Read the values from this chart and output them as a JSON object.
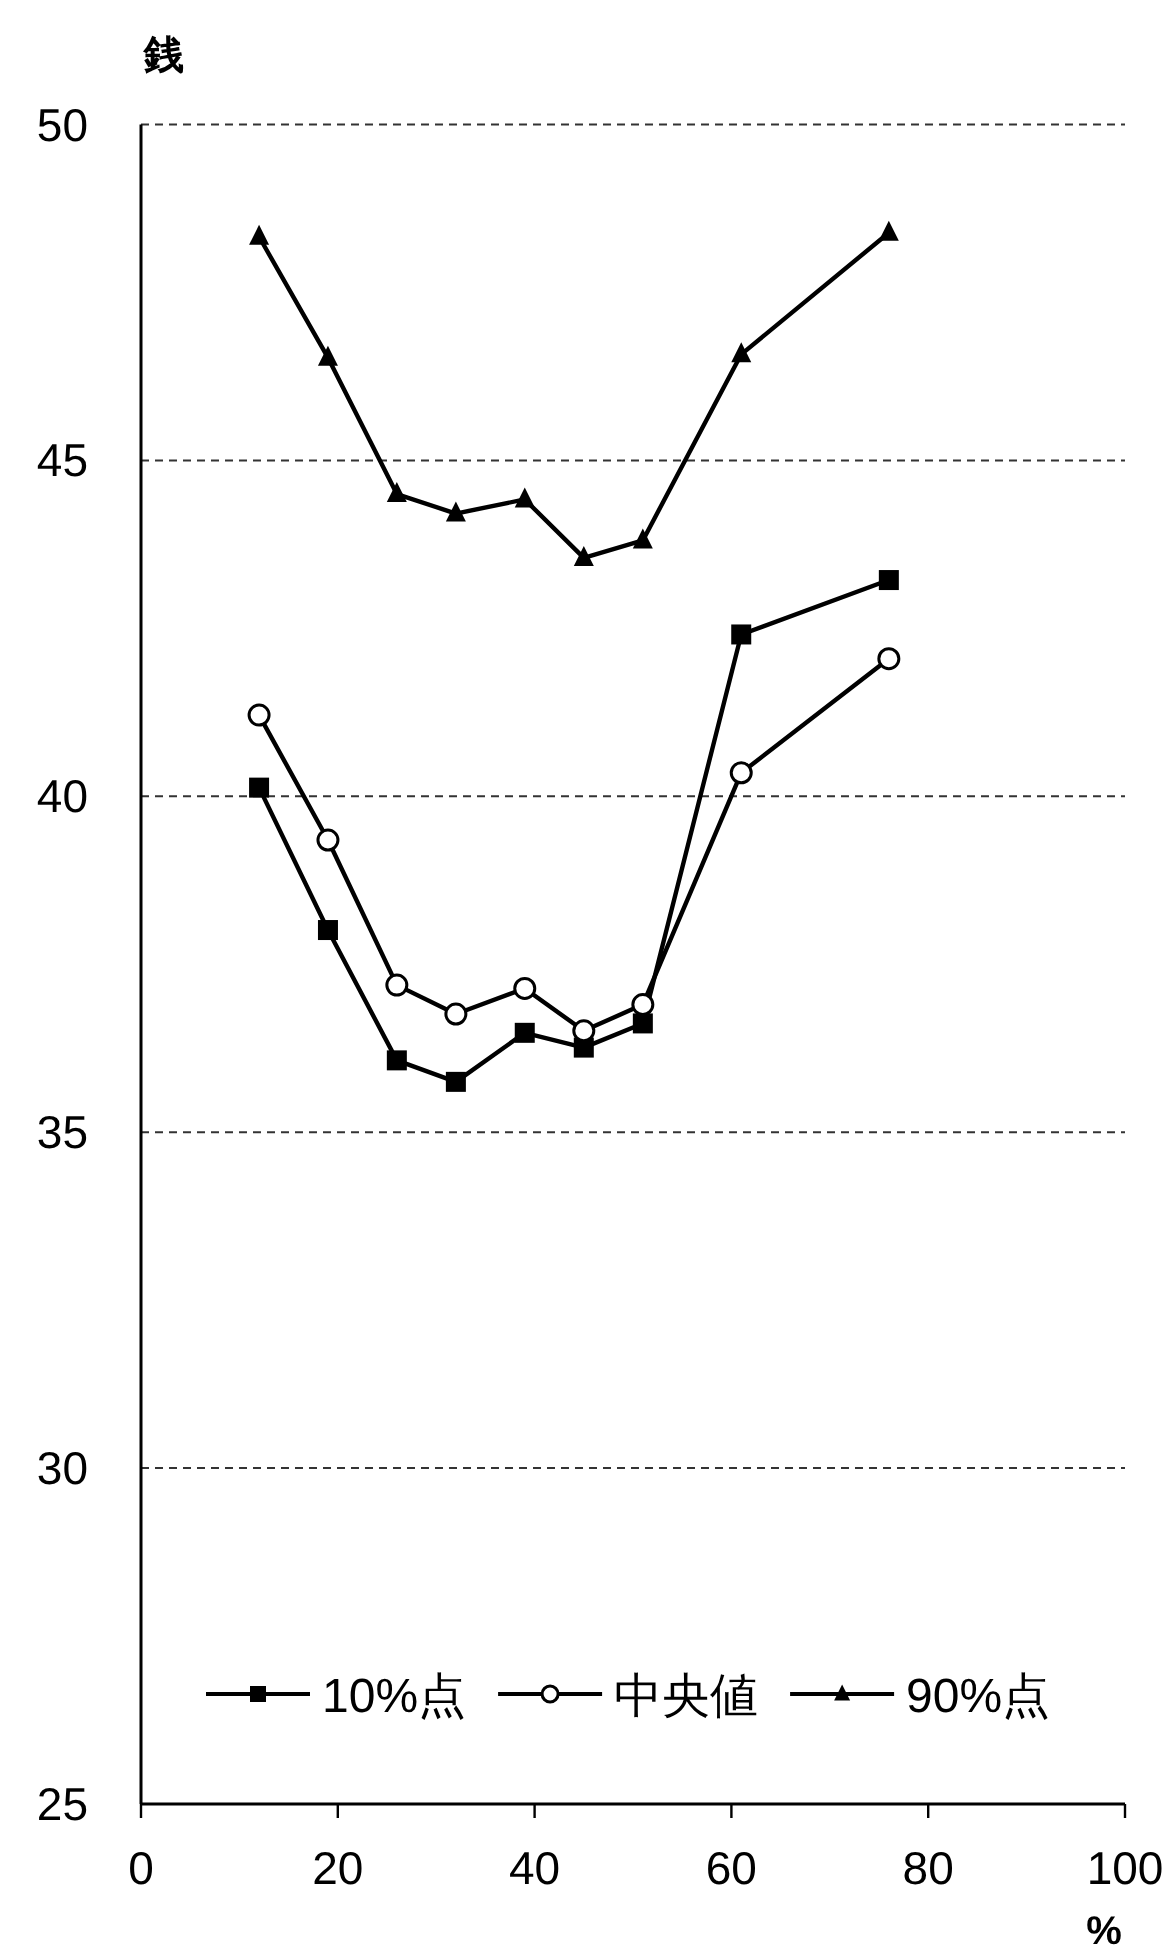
{
  "chart_data": {
    "type": "line",
    "ylabel": "銭",
    "xlabel": "%",
    "x": [
      12,
      19,
      26,
      32,
      39,
      45,
      51,
      61,
      76
    ],
    "xlim": [
      0,
      100
    ],
    "xticks": [
      0,
      20,
      40,
      60,
      80,
      100
    ],
    "ylim": [
      25,
      50
    ],
    "yticks": [
      25,
      30,
      35,
      40,
      45,
      50
    ],
    "grid": "y",
    "legend": "bottom",
    "line_style": "solid",
    "series": [
      {
        "name": "10%点",
        "color": "#000000",
        "marker": "square",
        "values": [
          40.13,
          38.01,
          36.07,
          35.75,
          36.48,
          36.26,
          36.62,
          42.41,
          43.22
        ]
      },
      {
        "name": "中央値",
        "color": "#000000",
        "marker": "circle",
        "values": [
          41.21,
          39.35,
          37.19,
          36.76,
          37.14,
          36.51,
          36.9,
          40.35,
          42.05
        ]
      },
      {
        "name": "90%点",
        "color": "#000000",
        "marker": "triangle",
        "values": [
          48.33,
          46.53,
          44.5,
          44.21,
          44.42,
          43.55,
          43.81,
          46.58,
          48.39
        ]
      }
    ]
  }
}
